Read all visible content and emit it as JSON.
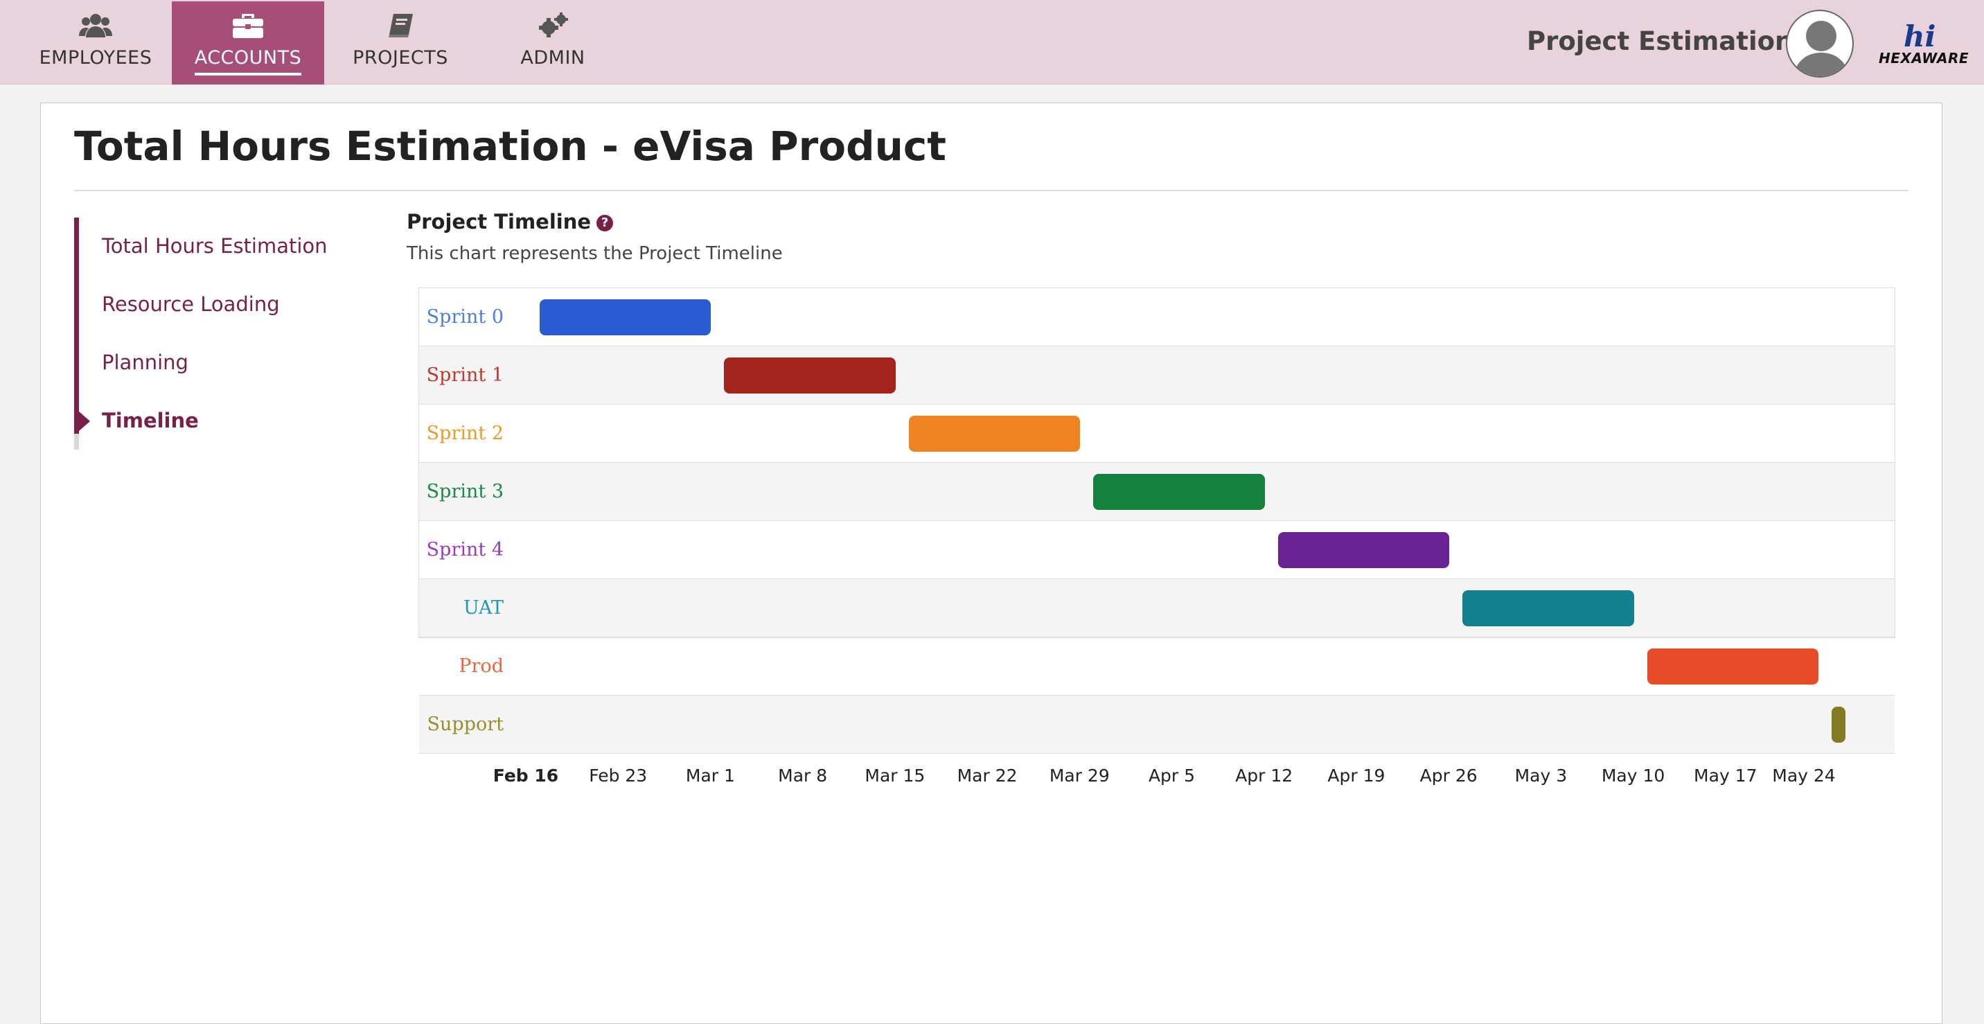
{
  "nav": {
    "tabs": [
      {
        "label": "EMPLOYEES",
        "icon": "users-icon",
        "active": false
      },
      {
        "label": "ACCOUNTS",
        "icon": "briefcase-icon",
        "active": true
      },
      {
        "label": "PROJECTS",
        "icon": "book-icon",
        "active": false
      },
      {
        "label": "ADMIN",
        "icon": "gears-icon",
        "active": false
      }
    ],
    "project_selector": "Project Estimation",
    "logo_mark": "hi",
    "logo_text": "HEXAWARE"
  },
  "page": {
    "title": "Total Hours Estimation - eVisa Product"
  },
  "side_menu": {
    "items": [
      {
        "label": "Total Hours Estimation",
        "active": false
      },
      {
        "label": "Resource Loading",
        "active": false
      },
      {
        "label": "Planning",
        "active": false
      },
      {
        "label": "Timeline",
        "active": true
      }
    ]
  },
  "chart_header": {
    "title": "Project Timeline",
    "help_glyph": "?",
    "subtitle": "This chart represents the Project Timeline"
  },
  "chart_data": {
    "type": "gantt",
    "x_axis_ticks": [
      "Feb 16",
      "Feb 23",
      "Mar 1",
      "Mar 8",
      "Mar 15",
      "Mar 22",
      "Mar 29",
      "Apr 5",
      "Apr 12",
      "Apr 19",
      "Apr 26",
      "May 3",
      "May 10",
      "May 17",
      "May 24"
    ],
    "tasks": [
      {
        "name": "Sprint 0",
        "start": "Feb 17",
        "end": "Mar 1",
        "color": "#2a5bd0",
        "label_color": "#4a7fe0"
      },
      {
        "name": "Sprint 1",
        "start": "Mar 2",
        "end": "Mar 15",
        "color": "#a3241c",
        "label_color": "#c0392b"
      },
      {
        "name": "Sprint 2",
        "start": "Mar 16",
        "end": "Mar 29",
        "color": "#ef8321",
        "label_color": "#ef9a28"
      },
      {
        "name": "Sprint 3",
        "start": "Mar 30",
        "end": "Apr 12",
        "color": "#16803f",
        "label_color": "#188a45"
      },
      {
        "name": "Sprint 4",
        "start": "Apr 13",
        "end": "Apr 26",
        "color": "#692293",
        "label_color": "#9b3bc0"
      },
      {
        "name": "UAT",
        "start": "Apr 27",
        "end": "May 10",
        "color": "#12808f",
        "label_color": "#1a9bb0"
      },
      {
        "name": "Prod",
        "start": "May 11",
        "end": "May 24",
        "color": "#e74c28",
        "label_color": "#f0623a"
      },
      {
        "name": "Support",
        "start": "May 25",
        "end": "May 30",
        "color": "#837a24",
        "label_color": "#9a8e2a"
      }
    ]
  }
}
